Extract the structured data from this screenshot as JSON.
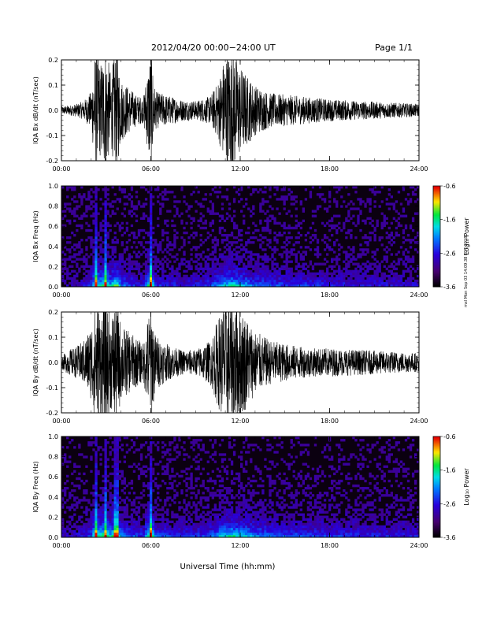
{
  "header": {
    "title": "2012/04/20  00:00−24:00 UT",
    "page": "Page 1/1"
  },
  "stamp": "mxl Mon Sep 03 14:09:38 EDT 2018",
  "xaxis": {
    "label": "Universal Time (hh:mm)",
    "ticks": [
      "00:00",
      "06:00",
      "12:00",
      "18:00",
      "24:00"
    ],
    "range": [
      0,
      24
    ]
  },
  "colors": {
    "trace": "#000000",
    "spec_bg": "#0b0010"
  },
  "colorbar": {
    "label": "Log₁₀ Power",
    "ticks": [
      "-0.6",
      "-1.6",
      "-2.6",
      "-3.6"
    ],
    "range": [
      -3.6,
      -0.6
    ]
  },
  "chart_data": [
    {
      "type": "line",
      "ylabel": "IQA Bx dB/dt (nT/sec)",
      "ylim": [
        -0.2,
        0.2
      ],
      "yticks": [
        "0.2",
        "0.1",
        "0.0",
        "-0.1",
        "-0.2"
      ],
      "xticks": [
        "00:00",
        "06:00",
        "12:00",
        "18:00",
        "24:00"
      ],
      "envelope": {
        "x": [
          0,
          1,
          1.5,
          2,
          2.3,
          2.6,
          3,
          3.3,
          3.7,
          4,
          5,
          5.5,
          6,
          6.3,
          7,
          8,
          9,
          10,
          10.5,
          11,
          11.5,
          12,
          13,
          14,
          15,
          16,
          17,
          18,
          20,
          22,
          24
        ],
        "amplitude": [
          0.012,
          0.02,
          0.03,
          0.06,
          0.2,
          0.15,
          0.2,
          0.12,
          0.2,
          0.1,
          0.05,
          0.04,
          0.2,
          0.06,
          0.05,
          0.035,
          0.03,
          0.045,
          0.09,
          0.18,
          0.2,
          0.14,
          0.08,
          0.055,
          0.05,
          0.045,
          0.04,
          0.035,
          0.03,
          0.025,
          0.02
        ]
      }
    },
    {
      "type": "heatmap",
      "ylabel": "IQA Bx Freq (Hz)",
      "ylim": [
        0,
        1.0
      ],
      "yticks": [
        "1.0",
        "0.8",
        "0.6",
        "0.4",
        "0.2",
        "0.0"
      ],
      "xticks": [
        "00:00",
        "06:00",
        "12:00",
        "18:00",
        "24:00"
      ],
      "zlabel": "Log₁₀ Power",
      "zlim": [
        -3.6,
        -0.6
      ],
      "activity": {
        "x": [
          0,
          1,
          1.5,
          2,
          2.3,
          2.6,
          3,
          3.3,
          3.7,
          4,
          5,
          5.5,
          6,
          6.3,
          7,
          8,
          9,
          10,
          10.5,
          11,
          11.5,
          12,
          13,
          14,
          15,
          16,
          17,
          18,
          20,
          22,
          24
        ],
        "level": [
          0.1,
          0.15,
          0.2,
          0.35,
          0.9,
          0.7,
          0.9,
          0.6,
          0.9,
          0.45,
          0.3,
          0.25,
          0.95,
          0.35,
          0.3,
          0.25,
          0.25,
          0.35,
          0.5,
          0.65,
          0.7,
          0.6,
          0.45,
          0.4,
          0.35,
          0.33,
          0.3,
          0.28,
          0.25,
          0.22,
          0.2
        ]
      }
    },
    {
      "type": "line",
      "ylabel": "IQA By dB/dt (nT/sec)",
      "ylim": [
        -0.2,
        0.2
      ],
      "yticks": [
        "0.2",
        "0.1",
        "0.0",
        "-0.1",
        "-0.2"
      ],
      "xticks": [
        "00:00",
        "06:00",
        "12:00",
        "18:00",
        "24:00"
      ],
      "envelope": {
        "x": [
          0,
          0.5,
          1,
          1.5,
          2,
          2.3,
          2.6,
          3,
          3.3,
          3.7,
          4,
          5,
          5.5,
          6,
          6.3,
          7,
          8,
          9,
          10,
          10.5,
          11,
          11.5,
          12,
          13,
          14,
          15,
          16,
          17,
          18,
          20,
          22,
          24
        ],
        "amplitude": [
          0.02,
          0.04,
          0.05,
          0.07,
          0.12,
          0.2,
          0.17,
          0.2,
          0.15,
          0.2,
          0.12,
          0.08,
          0.06,
          0.2,
          0.09,
          0.06,
          0.04,
          0.04,
          0.07,
          0.14,
          0.2,
          0.2,
          0.18,
          0.1,
          0.07,
          0.06,
          0.05,
          0.045,
          0.045,
          0.04,
          0.035,
          0.03
        ]
      }
    },
    {
      "type": "heatmap",
      "ylabel": "IQA By Freq (Hz)",
      "ylim": [
        0,
        1.0
      ],
      "yticks": [
        "1.0",
        "0.8",
        "0.6",
        "0.4",
        "0.2",
        "0.0"
      ],
      "xticks": [
        "00:00",
        "06:00",
        "12:00",
        "18:00",
        "24:00"
      ],
      "zlabel": "Log₁₀ Power",
      "zlim": [
        -3.6,
        -0.6
      ],
      "activity": {
        "x": [
          0,
          1,
          1.5,
          2,
          2.3,
          2.6,
          3,
          3.3,
          3.7,
          4,
          5,
          5.5,
          6,
          6.3,
          7,
          8,
          9,
          10,
          10.5,
          11,
          11.5,
          12,
          13,
          14,
          15,
          16,
          17,
          18,
          20,
          22,
          24
        ],
        "level": [
          0.15,
          0.2,
          0.25,
          0.4,
          0.95,
          0.75,
          0.95,
          0.65,
          0.95,
          0.5,
          0.35,
          0.3,
          1.0,
          0.4,
          0.35,
          0.3,
          0.3,
          0.4,
          0.55,
          0.7,
          0.75,
          0.65,
          0.5,
          0.45,
          0.4,
          0.38,
          0.35,
          0.33,
          0.3,
          0.27,
          0.25
        ]
      }
    }
  ]
}
